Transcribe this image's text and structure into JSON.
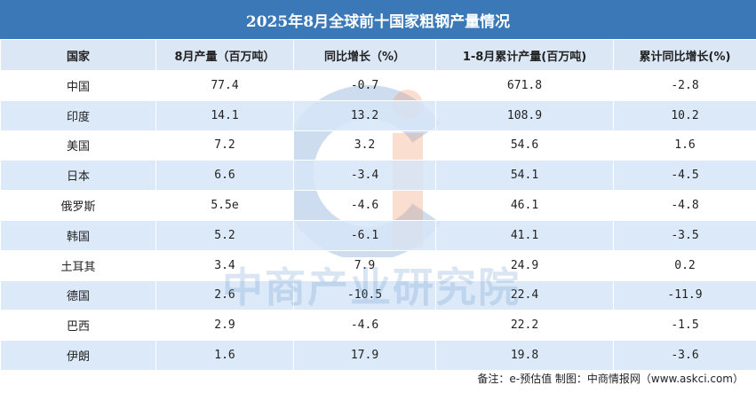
{
  "header": {
    "title": "2025年8月全球前十国家粗钢产量情况"
  },
  "table": {
    "columns": [
      "国家",
      "8月产量（百万吨）",
      "同比增长（%）",
      "1-8月累计产量(百万吨)",
      "累计同比增长(%)"
    ],
    "rows": [
      [
        "中国",
        "77.4",
        "-0.7",
        "671.8",
        "-2.8"
      ],
      [
        "印度",
        "14.1",
        "13.2",
        "108.9",
        "10.2"
      ],
      [
        "美国",
        "7.2",
        "3.2",
        "54.6",
        "1.6"
      ],
      [
        "日本",
        "6.6",
        "-3.4",
        "54.1",
        "-4.5"
      ],
      [
        "俄罗斯",
        "5.5e",
        "-4.6",
        "46.1",
        "-4.8"
      ],
      [
        "韩国",
        "5.2",
        "-6.1",
        "41.1",
        "-3.5"
      ],
      [
        "土耳其",
        "3.4",
        "7.9",
        "24.9",
        "0.2"
      ],
      [
        "德国",
        "2.6",
        "-10.5",
        "22.4",
        "-11.9"
      ],
      [
        "巴西",
        "2.9",
        "-4.6",
        "22.2",
        "-1.5"
      ],
      [
        "伊朗",
        "1.6",
        "17.9",
        "19.8",
        "-3.6"
      ]
    ]
  },
  "watermark": "中商产业研究院",
  "footer": {
    "note": "备注：e-预估值 制图：中商情报网（www.askci.com）"
  }
}
